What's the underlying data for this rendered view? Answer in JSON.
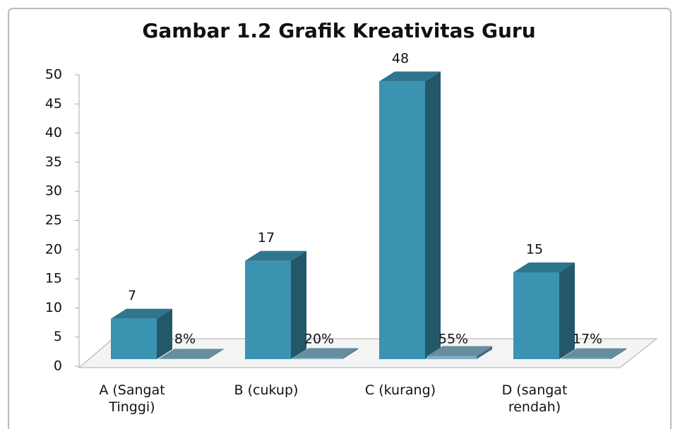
{
  "chart_data": {
    "type": "bar3d",
    "title": "Gambar 1.2 Grafik Kreativitas Guru",
    "categories": [
      "A (Sangat Tinggi)",
      "B (cukup)",
      "C (kurang)",
      "D (sangat rendah)"
    ],
    "series": [
      {
        "color": "#3a93b0",
        "values": [
          7,
          17,
          48,
          15
        ]
      },
      {
        "color": "#7fb1c6",
        "values": [
          0.08,
          0.2,
          0.55,
          0.17
        ],
        "value_labels": [
          "8%",
          "20%",
          "55%",
          "17%"
        ]
      }
    ],
    "ylim": [
      0,
      50
    ],
    "yticks": [
      0,
      5,
      10,
      15,
      20,
      25,
      30,
      35,
      40,
      45,
      50
    ]
  }
}
